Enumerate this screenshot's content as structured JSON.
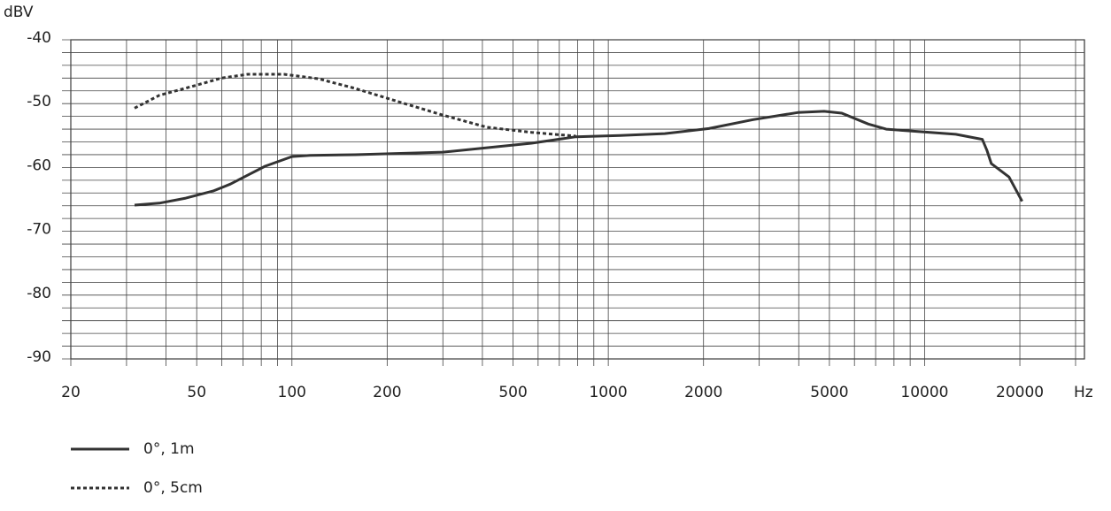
{
  "chart_data": {
    "type": "line",
    "y_label": "dBV",
    "x_label": "Hz",
    "xscale": "log",
    "xlim": [
      20,
      32000
    ],
    "ylim": [
      -90,
      -40
    ],
    "xticks": [
      20,
      50,
      100,
      200,
      500,
      1000,
      2000,
      5000,
      10000,
      20000
    ],
    "yticks": [
      -90,
      -80,
      -70,
      -60,
      -50,
      -40
    ],
    "xgrid": [
      20,
      30,
      40,
      50,
      60,
      70,
      80,
      90,
      100,
      200,
      300,
      400,
      500,
      600,
      700,
      800,
      900,
      1000,
      2000,
      3000,
      4000,
      5000,
      6000,
      7000,
      8000,
      9000,
      10000,
      20000,
      30000
    ],
    "ygrid": [
      -90,
      -88,
      -86,
      -84,
      -82,
      -80,
      -78,
      -76,
      -74,
      -72,
      -70,
      -68,
      -66,
      -64,
      -62,
      -60,
      -58,
      -56,
      -54,
      -52,
      -50,
      -48,
      -46,
      -44,
      -42,
      -40
    ],
    "legend": "bottom-left",
    "series": [
      {
        "name": "0°, 1m",
        "color": "#333333",
        "dash": "solid",
        "x": [
          31.8,
          38.1,
          46.2,
          56.3,
          63.9,
          72.5,
          82.3,
          100,
          114,
          158,
          300,
          572,
          790,
          1090,
          1508,
          2080,
          2870,
          3970,
          4810,
          5470,
          6640,
          7560,
          9740,
          12540,
          15210,
          15730,
          16250,
          18480,
          20330
        ],
        "values": [
          -65.9,
          -65.6,
          -64.8,
          -63.7,
          -62.6,
          -61.2,
          -59.8,
          -58.3,
          -58.1,
          -58,
          -57.6,
          -56.2,
          -55.2,
          -55,
          -54.7,
          -53.9,
          -52.5,
          -51.4,
          -51.2,
          -51.5,
          -53.2,
          -54,
          -54.4,
          -54.8,
          -55.6,
          -57.3,
          -59.4,
          -61.5,
          -65.3
        ]
      },
      {
        "name": "0°, 5cm",
        "color": "#333333",
        "dash": "dotted",
        "x": [
          31.8,
          38.1,
          49.2,
          59.9,
          72.5,
          94.3,
          121,
          158,
          217,
          300,
          413,
          572,
          790
        ],
        "values": [
          -50.7,
          -48.7,
          -47.2,
          -46,
          -45.4,
          -45.4,
          -46.1,
          -47.6,
          -49.7,
          -51.8,
          -53.7,
          -54.5,
          -55.1
        ]
      }
    ]
  }
}
